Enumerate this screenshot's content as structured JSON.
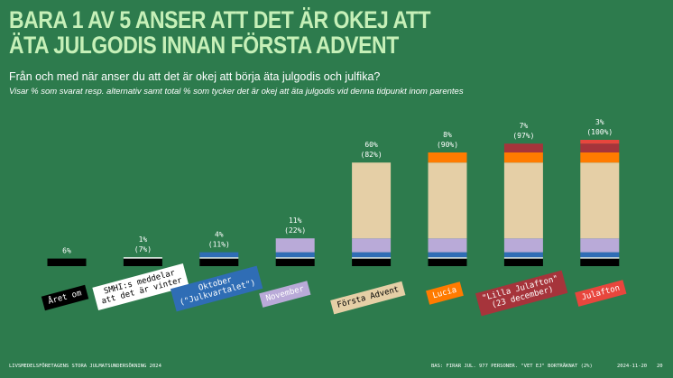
{
  "chart_data": {
    "type": "cumulative_bar",
    "title": "BARA 1 AV 5 ANSER ATT DET ÄR OKEJ ATT\nÄTA JULGODIS INNAN FÖRSTA ADVENT",
    "subtitle": "Från och med när anser du att det är okej att börja äta julgodis och julfika?",
    "note": "Visar % som svarat resp. alternativ samt total % som tycker det är okej att äta julgodis vid denna tidpunkt inom parentes",
    "categories": [
      "Året om",
      "SMHI:s meddelar\natt det är vinter",
      "Oktober\n(\"Julkvartalet\")",
      "November",
      "Första Advent",
      "Lucia",
      "\"Lilla Julafton\"\n(23 december)",
      "Julafton"
    ],
    "values": [
      6,
      1,
      4,
      11,
      60,
      8,
      7,
      3
    ],
    "value_labels": [
      "6%",
      "1%",
      "4%",
      "11%",
      "60%",
      "8%",
      "7%",
      "3%"
    ],
    "total_labels": [
      null,
      "(7%)",
      "(11%)",
      "(22%)",
      "(82%)",
      "(90%)",
      "(97%)",
      "(100%)"
    ],
    "colors": [
      "#000000",
      "#ffffff",
      "#2f6db5",
      "#b9aad8",
      "#e5cfa6",
      "#ff7b00",
      "#a6343b",
      "#e8463d"
    ],
    "label_text_colors": [
      "#ffffff",
      "#000000",
      "#ffffff",
      "#ffffff",
      "#000000",
      "#ffffff",
      "#ffffff",
      "#ffffff"
    ],
    "ylim": [
      0,
      100
    ]
  },
  "footer": {
    "left": "LIVSMEDELSFÖRETAGENS STORA JULMATSUNDERSÖKNING 2024",
    "base": "BAS: FIRAR JUL. 977 PERSONER. \"VET EJ\" BORTRÄKNAT (2%)",
    "date": "2024-11-20",
    "page": "20"
  }
}
